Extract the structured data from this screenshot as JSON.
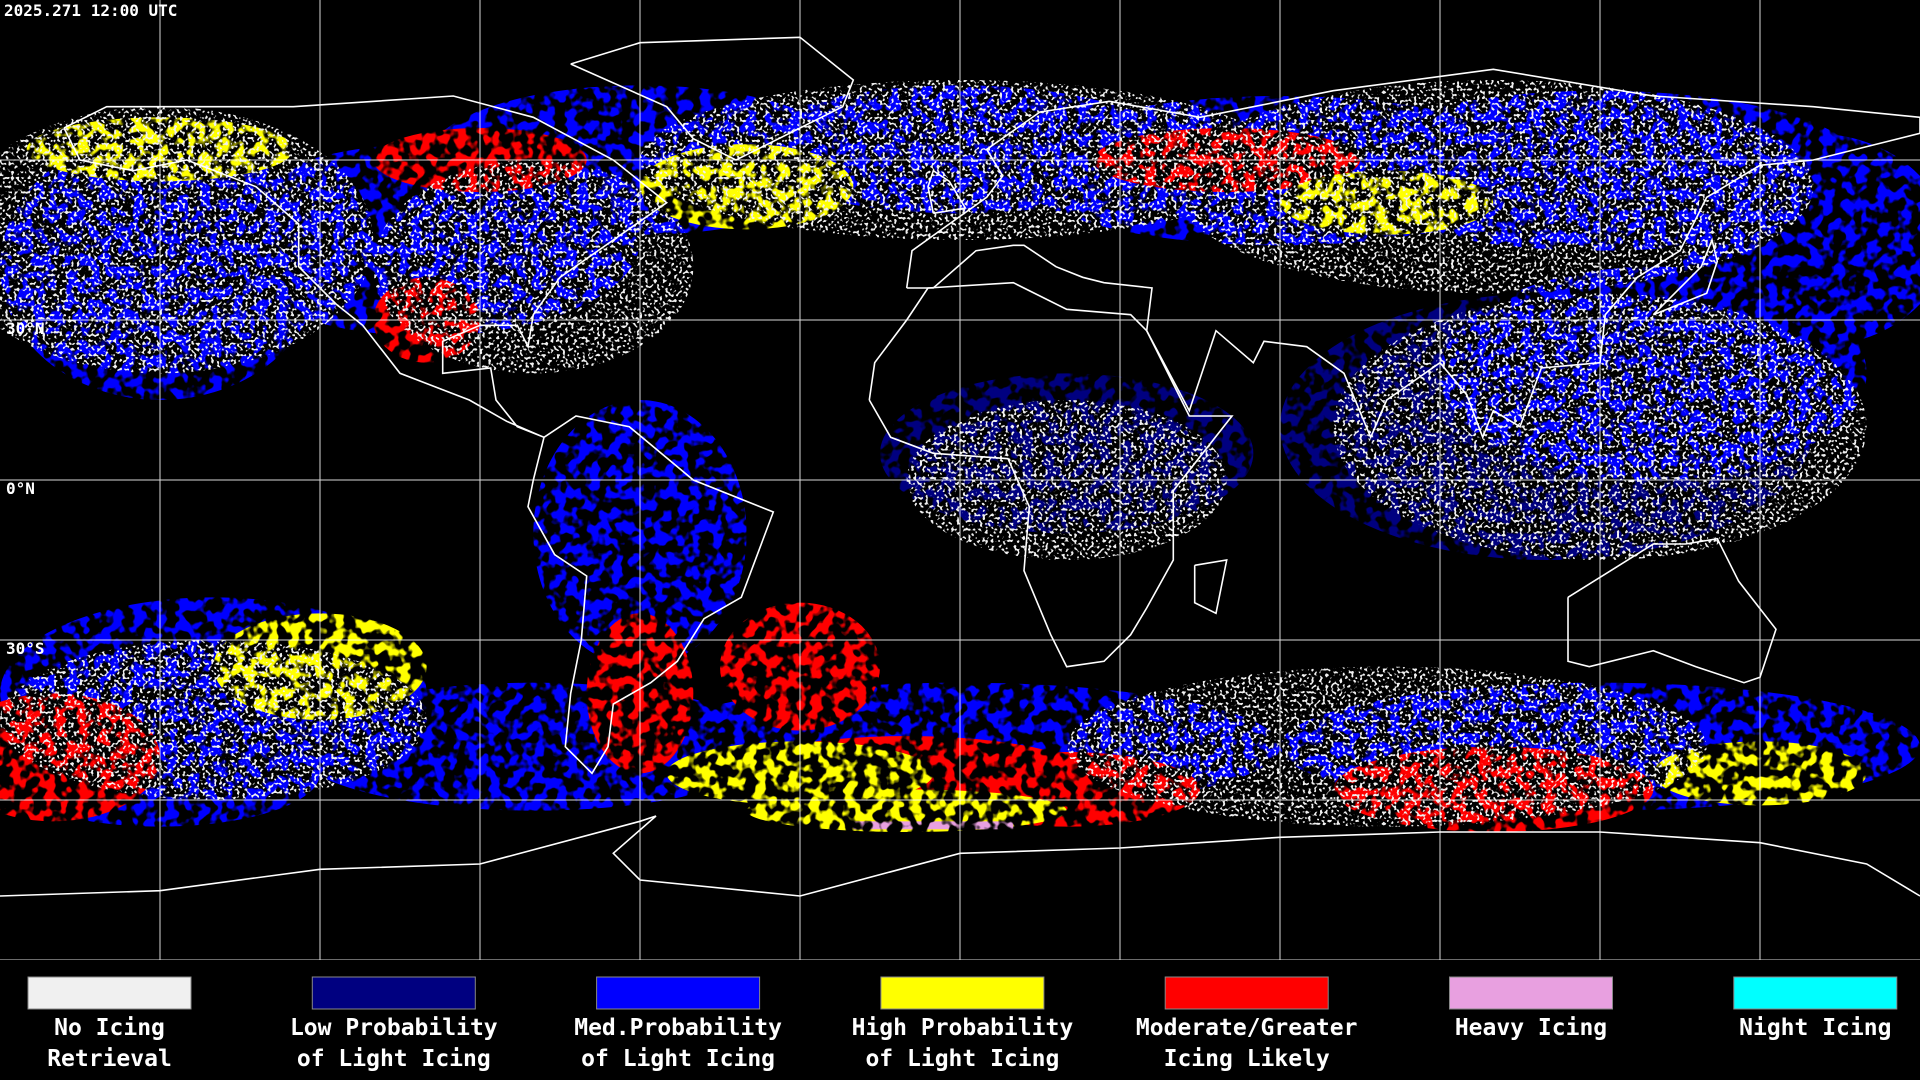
{
  "timestamp": "2025.271 12:00 UTC",
  "latitude_labels": [
    "30°N",
    "0°N",
    "30°S"
  ],
  "legend": [
    {
      "label": [
        "No Icing",
        "Retrieval"
      ],
      "color": "#f0f0f0"
    },
    {
      "label": [
        "Low Probability",
        "of Light Icing"
      ],
      "color": "#000080"
    },
    {
      "label": [
        "Med.Probability",
        "of Light Icing"
      ],
      "color": "#0000ff"
    },
    {
      "label": [
        "High Probability",
        "of Light Icing"
      ],
      "color": "#ffff00"
    },
    {
      "label": [
        "Moderate/Greater",
        "Icing Likely"
      ],
      "color": "#ff0000"
    },
    {
      "label": [
        "Heavy Icing"
      ],
      "color": "#e8a0e0"
    },
    {
      "label": [
        "Night Icing"
      ],
      "color": "#00ffff"
    }
  ]
}
